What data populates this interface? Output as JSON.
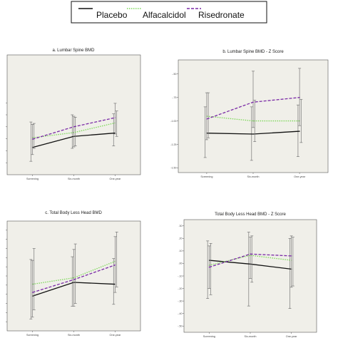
{
  "legend": {
    "entries": [
      {
        "label": "Placebo",
        "color": "#111111",
        "dash": "solid"
      },
      {
        "label": "Alfacalcidol",
        "color": "#7cd858",
        "dash": "dotted"
      },
      {
        "label": "Risedronate",
        "color": "#7a2aa6",
        "dash": "dashed"
      }
    ]
  },
  "chart_data": [
    {
      "type": "line",
      "title": "a. Lumbar Spine BMD",
      "categories": [
        "Screening",
        "Six-month",
        "One-year"
      ],
      "ylim": [
        0.75,
        1.0
      ],
      "yticks": [
        0.775,
        0.8,
        0.825,
        0.85,
        0.875,
        0.9
      ],
      "yticklabels": [
        "",
        "",
        "",
        "",
        "",
        ""
      ],
      "series": [
        {
          "name": "Placebo",
          "values": [
            0.807,
            0.83,
            0.837
          ],
          "err_low": [
            0.778,
            0.805,
            0.81
          ],
          "err_high": [
            0.86,
            0.875,
            0.877
          ]
        },
        {
          "name": "Alfacalcidol",
          "values": [
            0.827,
            0.838,
            0.858
          ],
          "err_low": [
            0.805,
            0.81,
            0.83
          ],
          "err_high": [
            0.857,
            0.87,
            0.883
          ]
        },
        {
          "name": "Risedronate",
          "values": [
            0.824,
            0.85,
            0.869
          ],
          "err_low": [
            0.792,
            0.808,
            0.835
          ],
          "err_high": [
            0.855,
            0.872,
            0.899
          ]
        }
      ],
      "grid": false
    },
    {
      "type": "line",
      "title": "b. Lumbar Spine BMD - Z Score",
      "categories": [
        "Screening",
        "Six-month",
        "One-year"
      ],
      "ylim": [
        -1.55,
        -0.35
      ],
      "yticks": [
        -1.5,
        -1.25,
        -1.0,
        -0.75,
        -0.5
      ],
      "yticklabels": [
        "-1.50",
        "-1.25",
        "-1.00",
        "-.75",
        "-.50"
      ],
      "series": [
        {
          "name": "Placebo",
          "values": [
            -1.13,
            -1.14,
            -1.11
          ],
          "err_low": [
            -1.39,
            -1.42,
            -1.38
          ],
          "err_high": [
            -0.85,
            -0.85,
            -0.83
          ]
        },
        {
          "name": "Alfacalcidol",
          "values": [
            -0.95,
            -1.0,
            -1.0
          ],
          "err_low": [
            -1.18,
            -1.22,
            -1.23
          ],
          "err_high": [
            -0.7,
            -0.78,
            -0.77
          ]
        },
        {
          "name": "Risedronate",
          "values": [
            -0.98,
            -0.8,
            -0.75
          ],
          "err_low": [
            -1.2,
            -1.07,
            -1.05
          ],
          "err_high": [
            -0.7,
            -0.47,
            -0.44
          ]
        }
      ],
      "grid": false
    },
    {
      "type": "line",
      "title": "c. Total Body Less Head BMD",
      "categories": [
        "Screening",
        "Six-month",
        "One-year"
      ],
      "ylim": [
        0.77,
        0.89
      ],
      "yticks": [
        0.78,
        0.79,
        0.8,
        0.81,
        0.82,
        0.83,
        0.84,
        0.85,
        0.86,
        0.87,
        0.88
      ],
      "yticklabels": [
        "",
        "",
        "",
        "",
        "",
        "",
        "",
        "",
        "",
        "",
        ""
      ],
      "series": [
        {
          "name": "Placebo",
          "values": [
            0.808,
            0.823,
            0.821
          ],
          "err_low": [
            0.783,
            0.797,
            0.799
          ],
          "err_high": [
            0.848,
            0.851,
            0.849
          ]
        },
        {
          "name": "Alfacalcidol",
          "values": [
            0.821,
            0.828,
            0.846
          ],
          "err_low": [
            0.793,
            0.8,
            0.818
          ],
          "err_high": [
            0.86,
            0.865,
            0.878
          ]
        },
        {
          "name": "Risedronate",
          "values": [
            0.812,
            0.826,
            0.842
          ],
          "err_low": [
            0.785,
            0.797,
            0.812
          ],
          "err_high": [
            0.847,
            0.859,
            0.873
          ]
        }
      ],
      "grid": false
    },
    {
      "type": "line",
      "title": "Total Body Less Head BMD - Z Score",
      "categories": [
        "Screening",
        "Six-month",
        "One-year"
      ],
      "ylim": [
        -0.55,
        0.35
      ],
      "yticks": [
        -0.5,
        -0.4,
        -0.3,
        -0.2,
        -0.1,
        0.0,
        0.1,
        0.2,
        0.3
      ],
      "yticklabels": [
        "-.50",
        "-.40",
        "-.30",
        "-.20",
        "-.10",
        ".00",
        ".10",
        ".20",
        ".30"
      ],
      "series": [
        {
          "name": "Placebo",
          "values": [
            0.025,
            -0.005,
            -0.045
          ],
          "err_low": [
            -0.28,
            -0.34,
            -0.36
          ],
          "err_high": [
            0.18,
            0.25,
            0.2
          ]
        },
        {
          "name": "Alfacalcidol",
          "values": [
            -0.015,
            0.065,
            0.025
          ],
          "err_low": [
            -0.25,
            -0.15,
            -0.18
          ],
          "err_high": [
            0.16,
            0.22,
            0.21
          ]
        },
        {
          "name": "Risedronate",
          "values": [
            -0.03,
            0.075,
            0.06
          ],
          "err_low": [
            -0.2,
            -0.12,
            -0.19
          ],
          "err_high": [
            0.14,
            0.21,
            0.22
          ]
        }
      ],
      "grid": false
    }
  ]
}
